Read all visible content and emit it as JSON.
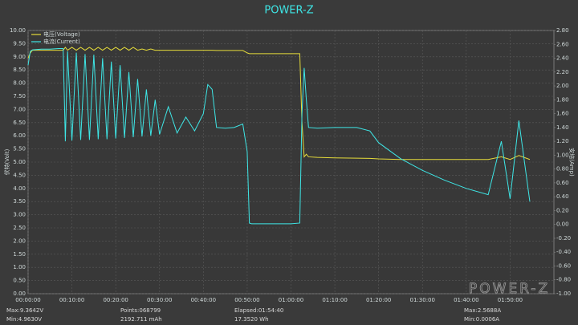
{
  "chart_data": {
    "type": "line",
    "title": "POWER-Z",
    "y_label": "伏特(Volt)",
    "y2_label": "安培(Amp)",
    "x": [
      0,
      0.5,
      1,
      3,
      5,
      7,
      8,
      8.5,
      9,
      10,
      11,
      12,
      13,
      14,
      15,
      16,
      17,
      18,
      19,
      20,
      21,
      22,
      23,
      24,
      25,
      26,
      27,
      28,
      29,
      30,
      32,
      34,
      36,
      38,
      40,
      41,
      42,
      43,
      45,
      47,
      49,
      50,
      50.5,
      51,
      55,
      60,
      62,
      62.5,
      63,
      63.5,
      64,
      66,
      70,
      75,
      78,
      80,
      85,
      90,
      95,
      100,
      105,
      108,
      110,
      112,
      114.5
    ],
    "series": [
      {
        "name": "电压(Voltage)",
        "color": "#e6dc3a",
        "axis": "y",
        "values": [
          8.95,
          9.15,
          9.25,
          9.25,
          9.25,
          9.25,
          9.25,
          9.36,
          9.25,
          9.36,
          9.25,
          9.36,
          9.25,
          9.36,
          9.25,
          9.36,
          9.25,
          9.36,
          9.25,
          9.36,
          9.25,
          9.36,
          9.25,
          9.36,
          9.25,
          9.3,
          9.25,
          9.3,
          9.25,
          9.25,
          9.25,
          9.25,
          9.25,
          9.25,
          9.25,
          9.25,
          9.25,
          9.24,
          9.24,
          9.24,
          9.24,
          9.15,
          9.12,
          9.12,
          9.12,
          9.12,
          9.12,
          6.5,
          5.2,
          5.3,
          5.2,
          5.18,
          5.16,
          5.15,
          5.14,
          5.12,
          5.1,
          5.1,
          5.1,
          5.1,
          5.1,
          5.2,
          5.1,
          5.25,
          5.1
        ]
      },
      {
        "name": "电流(Current)",
        "color": "#3ee6e6",
        "axis": "y2",
        "values": [
          2.3,
          2.5,
          2.52,
          2.53,
          2.53,
          2.54,
          2.54,
          1.2,
          2.5,
          1.21,
          2.48,
          1.22,
          2.46,
          1.22,
          2.45,
          1.23,
          2.4,
          1.23,
          2.35,
          1.24,
          2.3,
          1.25,
          2.2,
          1.26,
          2.1,
          1.27,
          1.95,
          1.28,
          1.8,
          1.3,
          1.7,
          1.32,
          1.55,
          1.35,
          1.6,
          2.02,
          1.95,
          1.4,
          1.39,
          1.4,
          1.45,
          1.05,
          0.02,
          0.01,
          0.01,
          0.01,
          0.02,
          1.6,
          2.26,
          1.8,
          1.4,
          1.39,
          1.4,
          1.4,
          1.35,
          1.18,
          0.95,
          0.78,
          0.64,
          0.52,
          0.43,
          1.2,
          0.37,
          1.5,
          0.33
        ]
      }
    ],
    "xlim": [
      0,
      120
    ],
    "xticks": [
      {
        "value": 0,
        "label": "00:00:00"
      },
      {
        "value": 10,
        "label": "00:10:00"
      },
      {
        "value": 20,
        "label": "00:20:00"
      },
      {
        "value": 30,
        "label": "00:30:00"
      },
      {
        "value": 40,
        "label": "00:40:00"
      },
      {
        "value": 50,
        "label": "00:50:00"
      },
      {
        "value": 60,
        "label": "01:00:00"
      },
      {
        "value": 70,
        "label": "01:10:00"
      },
      {
        "value": 80,
        "label": "01:20:00"
      },
      {
        "value": 90,
        "label": "01:30:00"
      },
      {
        "value": 100,
        "label": "01:40:00"
      },
      {
        "value": 110,
        "label": "01:50:00"
      }
    ],
    "ylim": [
      0,
      10
    ],
    "yticks": [
      {
        "value": 0,
        "label": "0.00"
      },
      {
        "value": 0.5,
        "label": "0.50"
      },
      {
        "value": 1,
        "label": "1.00"
      },
      {
        "value": 1.5,
        "label": "1.50"
      },
      {
        "value": 2,
        "label": "2.00"
      },
      {
        "value": 2.5,
        "label": "2.50"
      },
      {
        "value": 3,
        "label": "3.00"
      },
      {
        "value": 3.5,
        "label": "3.50"
      },
      {
        "value": 4,
        "label": "4.00"
      },
      {
        "value": 4.5,
        "label": "4.50"
      },
      {
        "value": 5,
        "label": "5.00"
      },
      {
        "value": 5.5,
        "label": "5.50"
      },
      {
        "value": 6,
        "label": "6.00"
      },
      {
        "value": 6.5,
        "label": "6.50"
      },
      {
        "value": 7,
        "label": "7.00"
      },
      {
        "value": 7.5,
        "label": "7.50"
      },
      {
        "value": 8,
        "label": "8.00"
      },
      {
        "value": 8.5,
        "label": "8.50"
      },
      {
        "value": 9,
        "label": "9.00"
      },
      {
        "value": 9.5,
        "label": "9.50"
      },
      {
        "value": 10,
        "label": "10.00"
      }
    ],
    "y2lim": [
      -1,
      2.8
    ],
    "y2ticks": [
      {
        "value": -1,
        "label": "-1.00"
      },
      {
        "value": -0.8,
        "label": "-0.80"
      },
      {
        "value": -0.6,
        "label": "-0.60"
      },
      {
        "value": -0.4,
        "label": "-0.40"
      },
      {
        "value": -0.2,
        "label": "-0.20"
      },
      {
        "value": 0,
        "label": "0.00"
      },
      {
        "value": 0.2,
        "label": "0.20"
      },
      {
        "value": 0.4,
        "label": "0.40"
      },
      {
        "value": 0.6,
        "label": "0.60"
      },
      {
        "value": 0.8,
        "label": "0.80"
      },
      {
        "value": 1,
        "label": "1.00"
      },
      {
        "value": 1.2,
        "label": "1.20"
      },
      {
        "value": 1.4,
        "label": "1.40"
      },
      {
        "value": 1.6,
        "label": "1.60"
      },
      {
        "value": 1.8,
        "label": "1.80"
      },
      {
        "value": 2,
        "label": "2.00"
      },
      {
        "value": 2.2,
        "label": "2.20"
      },
      {
        "value": 2.4,
        "label": "2.40"
      },
      {
        "value": 2.6,
        "label": "2.60"
      },
      {
        "value": 2.8,
        "label": "2.80"
      }
    ],
    "grid": true,
    "legend": "top-left"
  },
  "footer": {
    "max_voltage": "Max:9.3642V",
    "min_voltage": "Min:4.9630V",
    "points": "Points:068799",
    "capacity": "2192.711 mAh",
    "elapsed": "Elapsed:01:54:40",
    "energy": "17.3520 Wh",
    "max_current": "Max:2.5688A",
    "min_current": "Min:0.0006A"
  },
  "watermark": "POWER-Z"
}
